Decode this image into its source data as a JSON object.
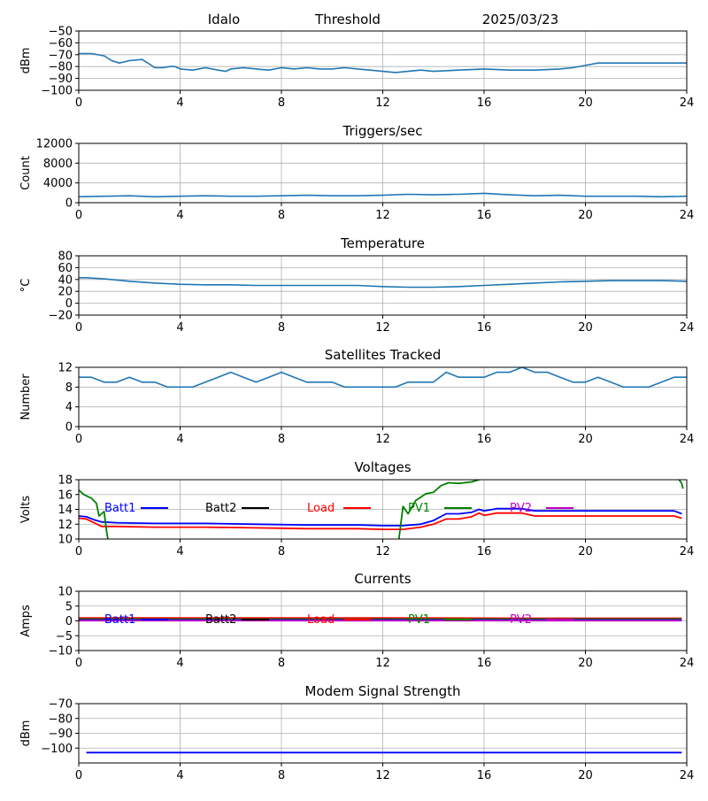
{
  "header": {
    "station": "Idalo",
    "subtitle": "Threshold",
    "date": "2025/03/23"
  },
  "colors": {
    "series": "#1f77b4",
    "batt1": "#0000ff",
    "batt2": "#000000",
    "load": "#ff0000",
    "pv1": "#008000",
    "pv2": "#bf00bf",
    "grid": "#b0b0b0"
  },
  "chart_data": [
    {
      "type": "line",
      "title": "",
      "ylabel": "dBm",
      "xlim": [
        0,
        24
      ],
      "ylim": [
        -100,
        -50
      ],
      "xticks": [
        0,
        4,
        8,
        12,
        16,
        20,
        24
      ],
      "yticks": [
        -100,
        -90,
        -80,
        -70,
        -60,
        -50
      ],
      "grid": true,
      "series": [
        {
          "color": "#1f77b4",
          "x": [
            0,
            0.5,
            1.0,
            1.3,
            1.6,
            2.0,
            2.5,
            2.8,
            3.0,
            3.3,
            3.6,
            3.8,
            4.0,
            4.5,
            5.0,
            5.5,
            5.8,
            6.0,
            6.5,
            7.0,
            7.5,
            8.0,
            8.5,
            9.0,
            9.5,
            10.0,
            10.5,
            11.0,
            11.5,
            12.0,
            12.5,
            13.0,
            13.5,
            14.0,
            15.0,
            16.0,
            17.0,
            18.0,
            19.0,
            19.5,
            20.0,
            20.5,
            21.0,
            22.0,
            23.0,
            24.0
          ],
          "y": [
            -69,
            -69,
            -71,
            -75,
            -77,
            -75,
            -74,
            -78,
            -81,
            -81,
            -80,
            -80,
            -82,
            -83,
            -81,
            -83,
            -84,
            -82,
            -81,
            -82,
            -83,
            -81,
            -82,
            -81,
            -82,
            -82,
            -81,
            -82,
            -83,
            -84,
            -85,
            -84,
            -83,
            -84,
            -83,
            -82,
            -83,
            -83,
            -82,
            -81,
            -79,
            -77,
            -77,
            -77,
            -77,
            -77
          ]
        }
      ]
    },
    {
      "type": "line",
      "title": "Triggers/sec",
      "ylabel": "Count",
      "xlim": [
        0,
        24
      ],
      "ylim": [
        0,
        12000
      ],
      "xticks": [
        0,
        4,
        8,
        12,
        16,
        20,
        24
      ],
      "yticks": [
        0,
        4000,
        8000,
        12000
      ],
      "grid": true,
      "series": [
        {
          "color": "#1f77b4",
          "x": [
            0,
            1,
            2,
            3,
            4,
            5,
            6,
            7,
            8,
            9,
            10,
            11,
            12,
            13,
            14,
            15,
            16,
            17,
            18,
            19,
            20,
            21,
            22,
            23,
            24
          ],
          "y": [
            1200,
            1300,
            1400,
            1200,
            1300,
            1400,
            1300,
            1300,
            1400,
            1500,
            1400,
            1400,
            1500,
            1700,
            1600,
            1700,
            1900,
            1600,
            1400,
            1500,
            1300,
            1300,
            1300,
            1200,
            1300
          ]
        }
      ]
    },
    {
      "type": "line",
      "title": "Temperature",
      "ylabel": "°C",
      "xlim": [
        0,
        24
      ],
      "ylim": [
        -20,
        80
      ],
      "xticks": [
        0,
        4,
        8,
        12,
        16,
        20,
        24
      ],
      "yticks": [
        -20,
        0,
        20,
        40,
        60,
        80
      ],
      "grid": true,
      "series": [
        {
          "color": "#1f77b4",
          "x": [
            0,
            0.3,
            1,
            2,
            3,
            4,
            5,
            6,
            7,
            8,
            9,
            10,
            11,
            12,
            13,
            14,
            15,
            16,
            17,
            18,
            19,
            20,
            21,
            22,
            23,
            24
          ],
          "y": [
            43,
            43,
            41,
            37,
            34,
            32,
            31,
            31,
            30,
            30,
            30,
            30,
            30,
            28,
            27,
            27,
            28,
            30,
            32,
            34,
            36,
            37,
            38,
            38,
            38,
            37
          ]
        }
      ]
    },
    {
      "type": "line",
      "title": "Satellites Tracked",
      "ylabel": "Number",
      "xlim": [
        0,
        24
      ],
      "ylim": [
        0,
        12
      ],
      "xticks": [
        0,
        4,
        8,
        12,
        16,
        20,
        24
      ],
      "yticks": [
        0,
        4,
        8,
        12
      ],
      "grid": true,
      "series": [
        {
          "color": "#1f77b4",
          "x": [
            0,
            0.5,
            1.0,
            1.5,
            2.0,
            2.5,
            3.0,
            3.5,
            4.0,
            4.5,
            5.0,
            5.5,
            6.0,
            6.5,
            7.0,
            7.5,
            8.0,
            8.5,
            9.0,
            9.5,
            10.0,
            10.5,
            11.0,
            11.5,
            12.0,
            12.5,
            13.0,
            13.5,
            14.0,
            14.5,
            15.0,
            15.5,
            16.0,
            16.5,
            17.0,
            17.5,
            18.0,
            18.5,
            19.0,
            19.5,
            20.0,
            20.5,
            21.0,
            21.5,
            22.0,
            22.5,
            23.0,
            23.5,
            24.0
          ],
          "y": [
            10,
            10,
            9,
            9,
            10,
            9,
            9,
            8,
            8,
            8,
            9,
            10,
            11,
            10,
            9,
            10,
            11,
            10,
            9,
            9,
            9,
            8,
            8,
            8,
            8,
            8,
            9,
            9,
            9,
            11,
            10,
            10,
            10,
            11,
            11,
            12,
            11,
            11,
            10,
            9,
            9,
            10,
            9,
            8,
            8,
            8,
            9,
            10,
            10
          ]
        }
      ]
    },
    {
      "type": "line",
      "title": "Voltages",
      "ylabel": "Volts",
      "xlim": [
        0,
        24
      ],
      "ylim": [
        10,
        18
      ],
      "xticks": [
        0,
        4,
        8,
        12,
        16,
        20,
        24
      ],
      "yticks": [
        10,
        12,
        14,
        16,
        18
      ],
      "grid": true,
      "legend": [
        "Batt1",
        "Batt2",
        "Load",
        "PV1",
        "PV2"
      ],
      "series": [
        {
          "name": "Batt1",
          "color": "#0000ff",
          "x": [
            0,
            0.3,
            0.6,
            0.9,
            1.5,
            3,
            5,
            7,
            9,
            11,
            12,
            12.8,
            13.5,
            14.0,
            14.5,
            15.0,
            15.5,
            15.8,
            16.0,
            16.5,
            17.0,
            17.5,
            18.0,
            19,
            20,
            21,
            22,
            23,
            23.5,
            23.8
          ],
          "y": [
            13.1,
            13.0,
            12.6,
            12.3,
            12.2,
            12.1,
            12.1,
            12.0,
            11.9,
            11.9,
            11.8,
            11.8,
            12.0,
            12.5,
            13.4,
            13.4,
            13.6,
            14.0,
            13.8,
            14.1,
            14.1,
            14.1,
            13.8,
            13.8,
            13.8,
            13.8,
            13.8,
            13.8,
            13.8,
            13.4
          ]
        },
        {
          "name": "Load",
          "color": "#ff0000",
          "x": [
            0,
            0.3,
            0.6,
            0.9,
            1.5,
            3,
            5,
            7,
            9,
            11,
            12,
            12.8,
            13.5,
            14.0,
            14.5,
            15.0,
            15.5,
            15.8,
            16.0,
            16.5,
            17.0,
            17.5,
            18.0,
            19,
            20,
            21,
            22,
            23,
            23.5,
            23.8
          ],
          "y": [
            12.8,
            12.7,
            12.2,
            11.7,
            11.7,
            11.6,
            11.6,
            11.5,
            11.4,
            11.4,
            11.3,
            11.3,
            11.6,
            12.0,
            12.7,
            12.7,
            13.0,
            13.5,
            13.2,
            13.5,
            13.5,
            13.5,
            13.1,
            13.1,
            13.1,
            13.1,
            13.1,
            13.1,
            13.1,
            12.8
          ]
        },
        {
          "name": "PV1",
          "color": "#008000",
          "x": [
            0,
            0.2,
            0.5,
            0.7,
            0.8,
            1.0,
            1.1,
            1.2
          ],
          "y": [
            16.6,
            16.0,
            15.5,
            14.8,
            13.1,
            13.7,
            11.0,
            9.0
          ]
        },
        {
          "name": "PV1",
          "color": "#008000",
          "x": [
            12.6,
            12.8,
            13.0,
            13.3,
            13.7,
            14.0,
            14.3,
            14.6,
            15.0,
            15.5,
            15.8,
            16.1,
            16.3
          ],
          "y": [
            9.0,
            14.4,
            13.4,
            15.2,
            16.1,
            16.3,
            17.2,
            17.6,
            17.5,
            17.7,
            18.0,
            18.2,
            18.5
          ]
        },
        {
          "name": "PV1",
          "color": "#008000",
          "x": [
            23.5,
            23.8,
            23.85
          ],
          "y": [
            19.0,
            17.5,
            16.8
          ]
        }
      ]
    },
    {
      "type": "line",
      "title": "Currents",
      "ylabel": "Amps",
      "xlim": [
        0,
        24
      ],
      "ylim": [
        -10,
        10
      ],
      "xticks": [
        0,
        4,
        8,
        12,
        16,
        20,
        24
      ],
      "yticks": [
        -10,
        -5,
        0,
        5,
        10
      ],
      "grid": true,
      "legend": [
        "Batt1",
        "Batt2",
        "Load",
        "PV1",
        "PV2"
      ],
      "series": [
        {
          "name": "Load",
          "color": "#ff0000",
          "x": [
            0,
            6,
            12,
            18,
            23.8
          ],
          "y": [
            1.0,
            1.0,
            1.0,
            0.9,
            0.9
          ]
        },
        {
          "name": "PV1",
          "color": "#008000",
          "x": [
            0,
            6,
            12,
            18,
            23.8
          ],
          "y": [
            0.6,
            0.6,
            0.6,
            0.6,
            0.6
          ]
        },
        {
          "name": "Batt1",
          "color": "#0000ff",
          "x": [
            0,
            6,
            12,
            18,
            23.8
          ],
          "y": [
            0.3,
            0.3,
            0.3,
            0.3,
            0.3
          ]
        },
        {
          "name": "PV2",
          "color": "#bf00bf",
          "x": [
            0,
            6,
            12,
            18,
            23.8
          ],
          "y": [
            0.1,
            0.1,
            0.1,
            0.1,
            0.1
          ]
        }
      ]
    },
    {
      "type": "line",
      "title": "Modem Signal Strength",
      "ylabel": "dBm",
      "xlim": [
        0,
        24
      ],
      "ylim": [
        -110,
        -70
      ],
      "xticks": [
        0,
        4,
        8,
        12,
        16,
        20,
        24
      ],
      "yticks": [
        -100,
        -90,
        -80,
        -70
      ],
      "grid": true,
      "series": [
        {
          "color": "#0000ff",
          "x": [
            0.3,
            23.8
          ],
          "y": [
            -103,
            -103
          ]
        }
      ]
    }
  ]
}
